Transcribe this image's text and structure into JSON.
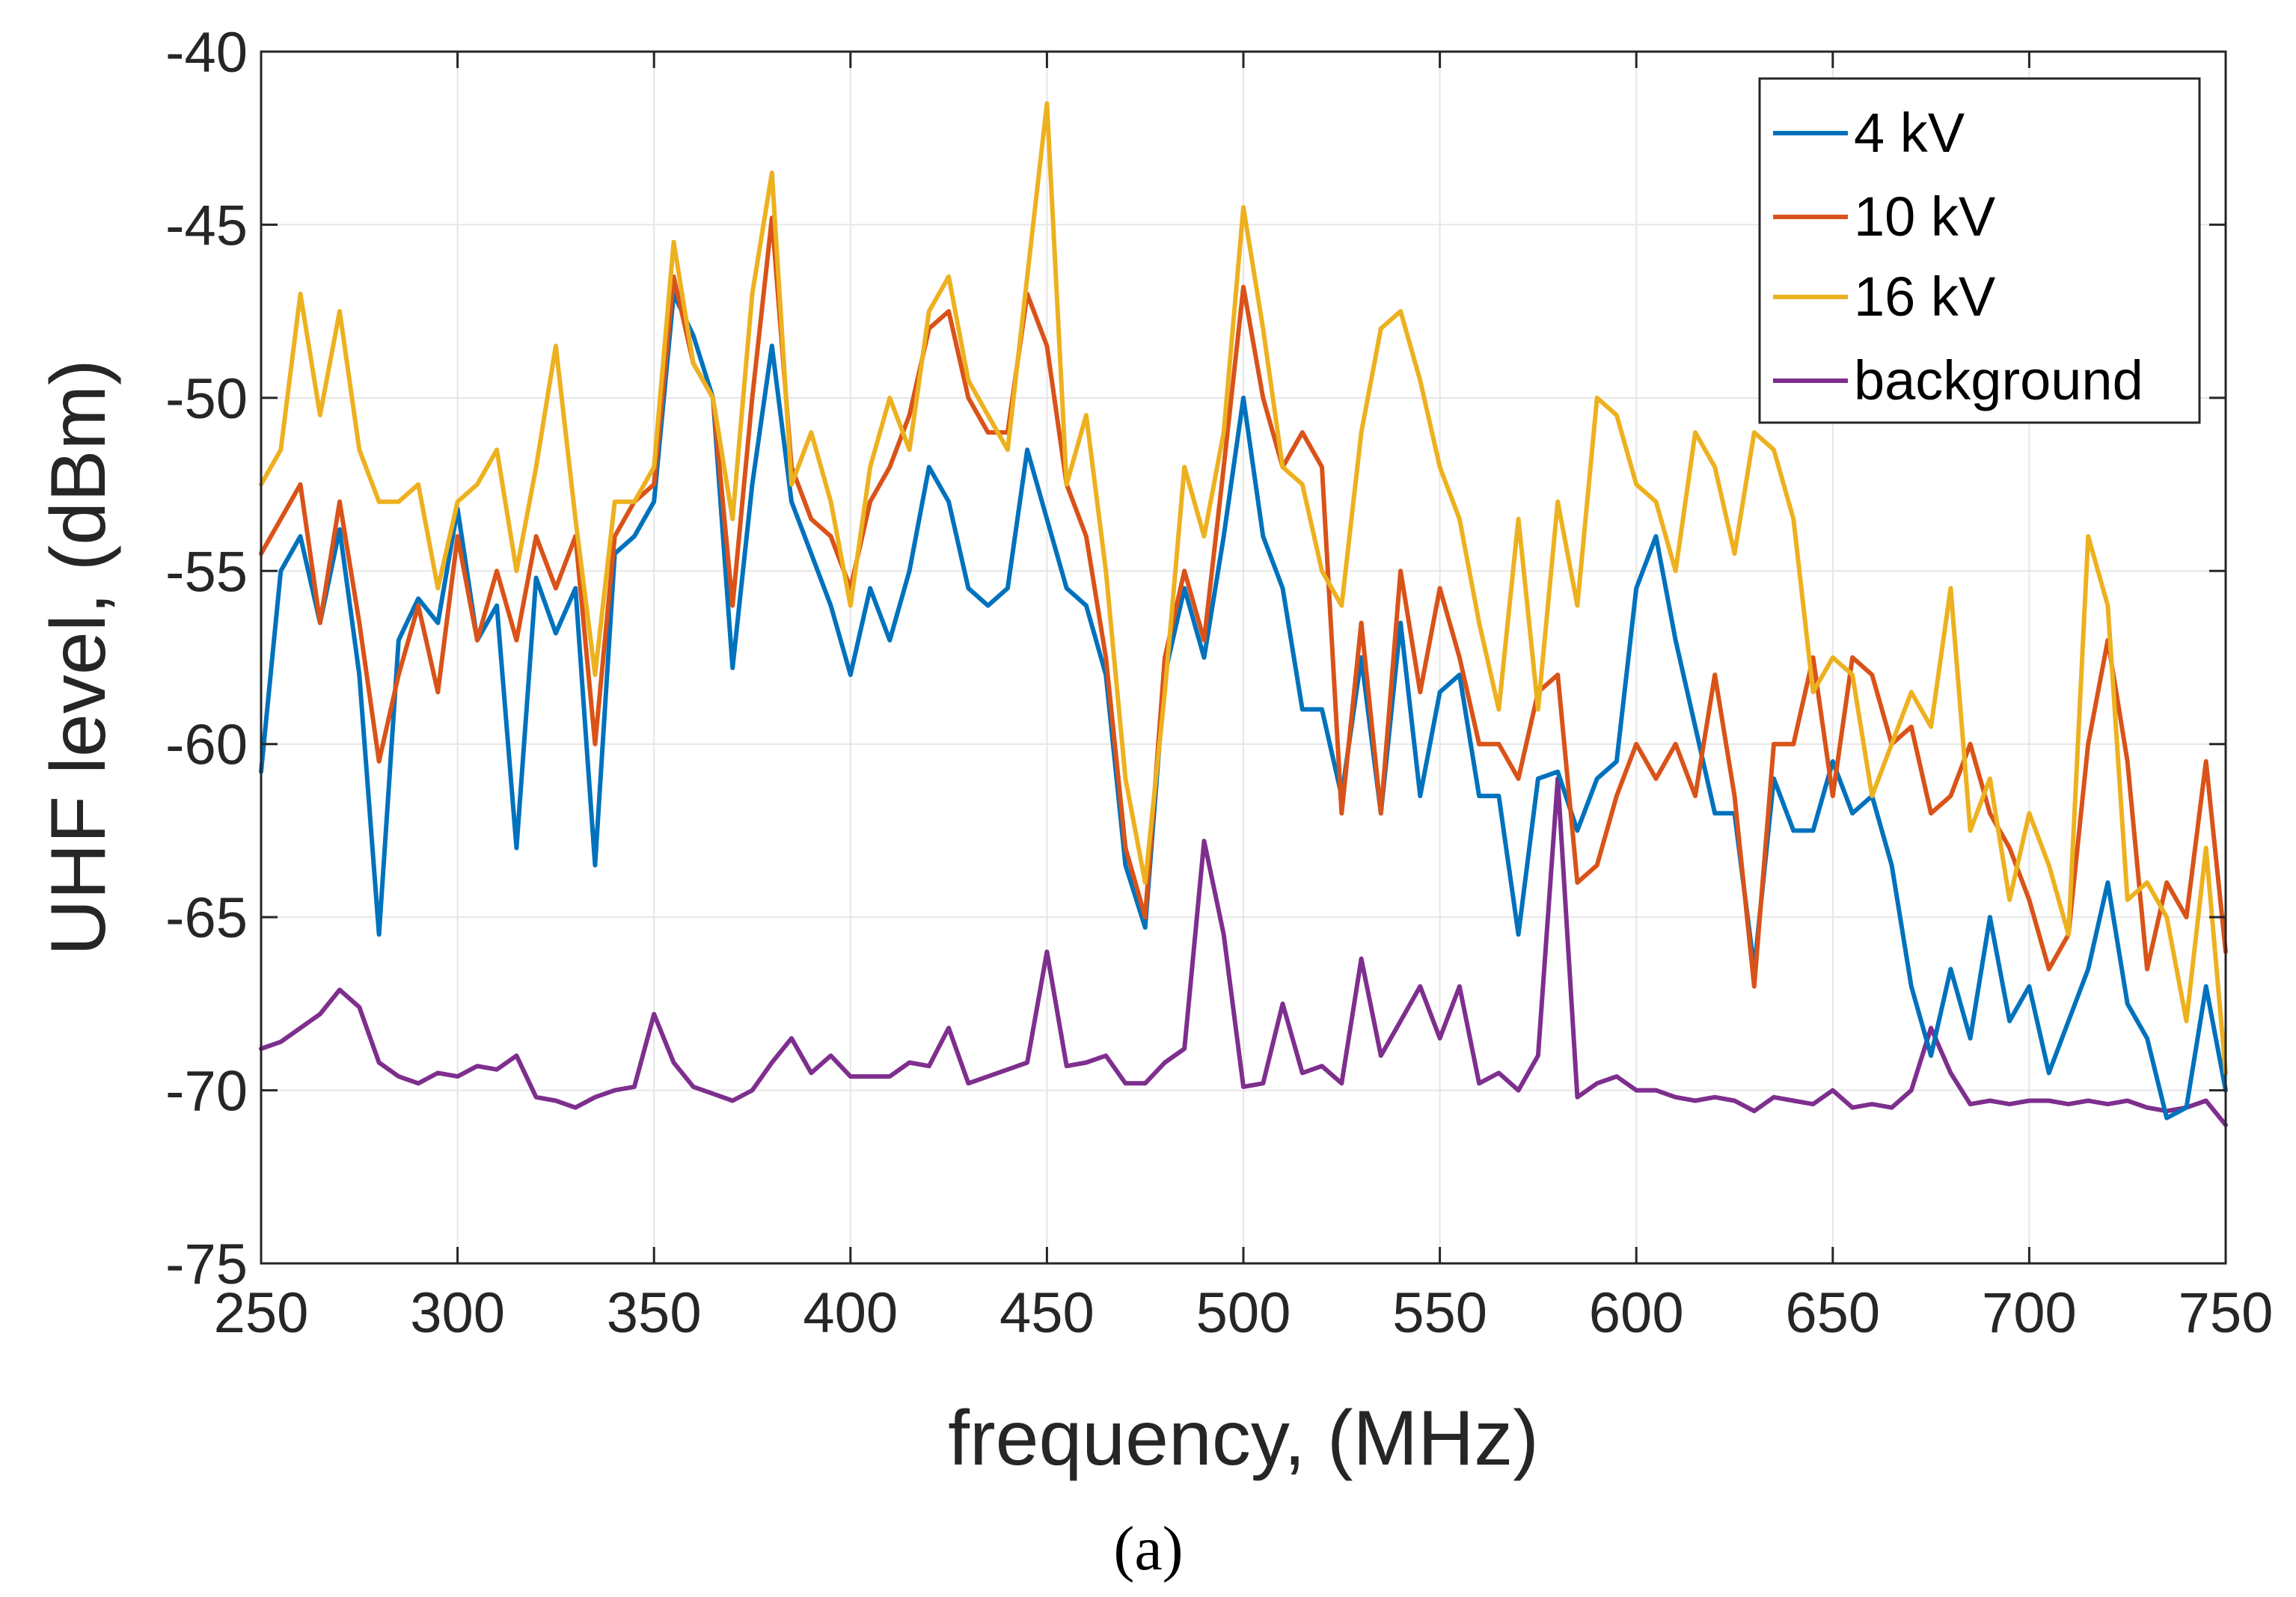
{
  "chart_data": {
    "type": "line",
    "title": "",
    "xlabel": "frequency, (MHz)",
    "ylabel": "UHF level, (dBm)",
    "xlim": [
      250,
      750
    ],
    "ylim": [
      -75,
      -40
    ],
    "grid": true,
    "legend_position": "top-right",
    "xticks": [
      "250",
      "300",
      "350",
      "400",
      "450",
      "500",
      "550",
      "600",
      "650",
      "700",
      "750"
    ],
    "yticks": [
      "-40",
      "-45",
      "-50",
      "-55",
      "-60",
      "-65",
      "-70",
      "-75"
    ],
    "caption": "(a)",
    "x": [
      250,
      255,
      260,
      265,
      270,
      275,
      280,
      285,
      290,
      295,
      300,
      305,
      310,
      315,
      320,
      325,
      330,
      335,
      340,
      345,
      350,
      355,
      360,
      365,
      370,
      375,
      380,
      385,
      390,
      395,
      400,
      405,
      410,
      415,
      420,
      425,
      430,
      435,
      440,
      445,
      450,
      455,
      460,
      465,
      470,
      475,
      480,
      485,
      490,
      495,
      500,
      505,
      510,
      515,
      520,
      525,
      530,
      535,
      540,
      545,
      550,
      555,
      560,
      565,
      570,
      575,
      580,
      585,
      590,
      595,
      600,
      605,
      610,
      615,
      620,
      625,
      630,
      635,
      640,
      645,
      650,
      655,
      660,
      665,
      670,
      675,
      680,
      685,
      690,
      695,
      700,
      705,
      710,
      715,
      720,
      725,
      730,
      735,
      740,
      745,
      750
    ],
    "series": [
      {
        "name": "4 kV",
        "color": "#0072BD",
        "values": [
          -60.8,
          -55.0,
          -54.0,
          -56.5,
          -53.8,
          -58.0,
          -65.5,
          -57.0,
          -55.8,
          -56.5,
          -53.2,
          -57.0,
          -56.0,
          -63.0,
          -55.2,
          -56.8,
          -55.5,
          -63.5,
          -54.5,
          -54.0,
          -53.0,
          -47.0,
          -48.2,
          -50.0,
          -57.8,
          -52.5,
          -48.5,
          -53.0,
          -54.5,
          -56.0,
          -58.0,
          -55.5,
          -57.0,
          -55.0,
          -52.0,
          -53.0,
          -55.5,
          -56.0,
          -55.5,
          -51.5,
          -53.5,
          -55.5,
          -56.0,
          -58.0,
          -63.5,
          -65.3,
          -58.0,
          -55.5,
          -57.5,
          -54.0,
          -50.0,
          -54.0,
          -55.5,
          -59.0,
          -59.0,
          -61.5,
          -57.5,
          -62.0,
          -56.5,
          -61.5,
          -58.5,
          -58.0,
          -61.5,
          -61.5,
          -65.5,
          -61.0,
          -60.8,
          -62.5,
          -61.0,
          -60.5,
          -55.5,
          -54.0,
          -57.0,
          -59.5,
          -62.0,
          -62.0,
          -66.5,
          -61.0,
          -62.5,
          -62.5,
          -60.5,
          -62.0,
          -61.5,
          -63.5,
          -67.0,
          -69.0,
          -66.5,
          -68.5,
          -65.0,
          -68.0,
          -67.0,
          -69.5,
          -68.0,
          -66.5,
          -64.0,
          -67.5,
          -68.5,
          -70.8,
          -70.5,
          -67.0,
          -70.0
        ]
      },
      {
        "name": "10 kV",
        "color": "#D95319",
        "values": [
          -54.5,
          -53.5,
          -52.5,
          -56.5,
          -53.0,
          -56.5,
          -60.5,
          -58.0,
          -56.0,
          -58.5,
          -54.0,
          -57.0,
          -55.0,
          -57.0,
          -54.0,
          -55.5,
          -54.0,
          -60.0,
          -54.0,
          -53.0,
          -52.5,
          -46.5,
          -49.0,
          -50.0,
          -56.0,
          -50.0,
          -44.8,
          -52.0,
          -53.5,
          -54.0,
          -55.5,
          -53.0,
          -52.0,
          -50.5,
          -48.0,
          -47.5,
          -50.0,
          -51.0,
          -51.0,
          -47.0,
          -48.5,
          -52.5,
          -54.0,
          -57.5,
          -63.0,
          -65.0,
          -57.5,
          -55.0,
          -57.0,
          -52.0,
          -46.8,
          -50.0,
          -52.0,
          -51.0,
          -52.0,
          -62.0,
          -56.5,
          -62.0,
          -55.0,
          -58.5,
          -55.5,
          -57.5,
          -60.0,
          -60.0,
          -61.0,
          -58.5,
          -58.0,
          -64.0,
          -63.5,
          -61.5,
          -60.0,
          -61.0,
          -60.0,
          -61.5,
          -58.0,
          -61.5,
          -67.0,
          -60.0,
          -60.0,
          -57.5,
          -61.5,
          -57.5,
          -58.0,
          -60.0,
          -59.5,
          -62.0,
          -61.5,
          -60.0,
          -62.0,
          -63.0,
          -64.5,
          -66.5,
          -65.5,
          -60.0,
          -57.0,
          -60.5,
          -66.5,
          -64.0,
          -65.0,
          -60.5,
          -66.0
        ]
      },
      {
        "name": "16 kV",
        "color": "#EDB120",
        "values": [
          -52.5,
          -51.5,
          -47.0,
          -50.5,
          -47.5,
          -51.5,
          -53.0,
          -53.0,
          -52.5,
          -55.5,
          -53.0,
          -52.5,
          -51.5,
          -55.0,
          -52.0,
          -48.5,
          -53.5,
          -58.0,
          -53.0,
          -53.0,
          -52.0,
          -45.5,
          -49.0,
          -50.0,
          -53.5,
          -47.0,
          -43.5,
          -52.5,
          -51.0,
          -53.0,
          -56.0,
          -52.0,
          -50.0,
          -51.5,
          -47.5,
          -46.5,
          -49.5,
          -50.5,
          -51.5,
          -46.5,
          -41.5,
          -52.5,
          -50.5,
          -55.0,
          -61.0,
          -64.0,
          -58.5,
          -52.0,
          -54.0,
          -51.0,
          -44.5,
          -48.0,
          -52.0,
          -52.5,
          -55.0,
          -56.0,
          -51.0,
          -48.0,
          -47.5,
          -49.5,
          -52.0,
          -53.5,
          -56.5,
          -59.0,
          -53.5,
          -59.0,
          -53.0,
          -56.0,
          -50.0,
          -50.5,
          -52.5,
          -53.0,
          -55.0,
          -51.0,
          -52.0,
          -54.5,
          -51.0,
          -51.5,
          -53.5,
          -58.5,
          -57.5,
          -58.0,
          -61.5,
          -60.0,
          -58.5,
          -59.5,
          -55.5,
          -62.5,
          -61.0,
          -64.5,
          -62.0,
          -63.5,
          -65.5,
          -54.0,
          -56.0,
          -64.5,
          -64.0,
          -65.0,
          -68.0,
          -63.0,
          -69.5
        ]
      },
      {
        "name": "background",
        "color": "#7E2F8E",
        "values": [
          -68.8,
          -68.6,
          -68.2,
          -67.8,
          -67.1,
          -67.6,
          -69.2,
          -69.6,
          -69.8,
          -69.5,
          -69.6,
          -69.3,
          -69.4,
          -69.0,
          -70.2,
          -70.3,
          -70.5,
          -70.2,
          -70.0,
          -69.9,
          -67.8,
          -69.2,
          -69.9,
          -70.1,
          -70.3,
          -70.0,
          -69.2,
          -68.5,
          -69.5,
          -69.0,
          -69.6,
          -69.6,
          -69.6,
          -69.2,
          -69.3,
          -68.2,
          -69.8,
          -69.6,
          -69.4,
          -69.2,
          -66.0,
          -69.3,
          -69.2,
          -69.0,
          -69.8,
          -69.8,
          -69.2,
          -68.8,
          -62.8,
          -65.5,
          -69.9,
          -69.8,
          -67.5,
          -69.5,
          -69.3,
          -69.8,
          -66.2,
          -69.0,
          -68.0,
          -67.0,
          -68.5,
          -67.0,
          -69.8,
          -69.5,
          -70.0,
          -69.0,
          -61.0,
          -70.2,
          -69.8,
          -69.6,
          -70.0,
          -70.0,
          -70.2,
          -70.3,
          -70.2,
          -70.3,
          -70.6,
          -70.2,
          -70.3,
          -70.4,
          -70.0,
          -70.5,
          -70.4,
          -70.5,
          -70.0,
          -68.2,
          -69.5,
          -70.4,
          -70.3,
          -70.4,
          -70.3,
          -70.3,
          -70.4,
          -70.3,
          -70.4,
          -70.3,
          -70.5,
          -70.6,
          -70.5,
          -70.3,
          -71.0
        ]
      }
    ]
  }
}
